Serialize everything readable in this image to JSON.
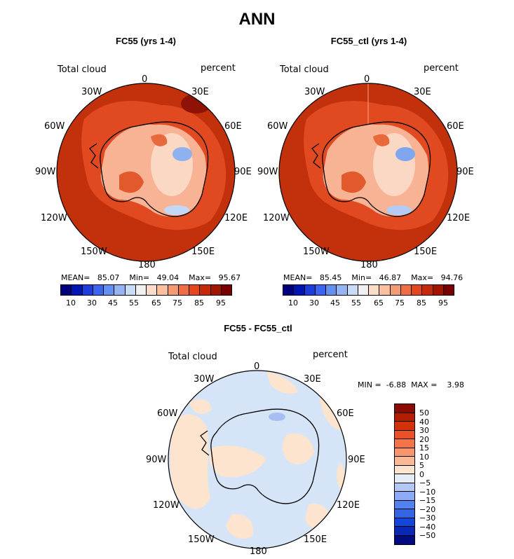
{
  "title": "ANN",
  "variable_label": "Total cloud",
  "units_label": "percent",
  "panels": [
    {
      "title": "FC55 (yrs 1-4)",
      "mean_label": "MEAN=",
      "mean": "85.07",
      "min_label": "Min=",
      "min": "49.04",
      "max_label": "Max=",
      "max": "95.67"
    },
    {
      "title": "FC55_ctl (yrs 1-4)",
      "mean_label": "MEAN=",
      "mean": "85.45",
      "min_label": "Min=",
      "min": "46.87",
      "max_label": "Max=",
      "max": "94.76"
    }
  ],
  "diff_panel": {
    "title": "FC55 - FC55_ctl",
    "min_label": "MIN =",
    "min": "-6.88",
    "max_label": "MAX =",
    "max": "3.98"
  },
  "longitude_labels": [
    "0",
    "30E",
    "60E",
    "90E",
    "120E",
    "150E",
    "180",
    "150W",
    "120W",
    "90W",
    "60W",
    "30W"
  ],
  "colorbar": {
    "tick_labels": [
      "10",
      "30",
      "45",
      "55",
      "65",
      "75",
      "85",
      "95"
    ],
    "colors": [
      "#00007e",
      "#0014b4",
      "#1e3cdc",
      "#3c64f0",
      "#6490f0",
      "#96b4f0",
      "#c8dcf5",
      "#f0f0f0",
      "#fadcc8",
      "#fac0a0",
      "#f59b73",
      "#f06e46",
      "#e6461e",
      "#c8280a",
      "#a01400",
      "#780000"
    ]
  },
  "diff_colorbar": {
    "tick_labels": [
      "50",
      "40",
      "30",
      "20",
      "15",
      "10",
      "5",
      "0",
      "−5",
      "−10",
      "−15",
      "−20",
      "−30",
      "−40",
      "−50"
    ],
    "colors": [
      "#8c0a00",
      "#b41e00",
      "#d2320a",
      "#eb5028",
      "#f57346",
      "#f7966e",
      "#fab996",
      "#fde4cf",
      "#e6ecf5",
      "#b4c8f5",
      "#8caaf5",
      "#5082f0",
      "#3264e6",
      "#1446dc",
      "#0a28b4",
      "#000a82"
    ]
  }
}
